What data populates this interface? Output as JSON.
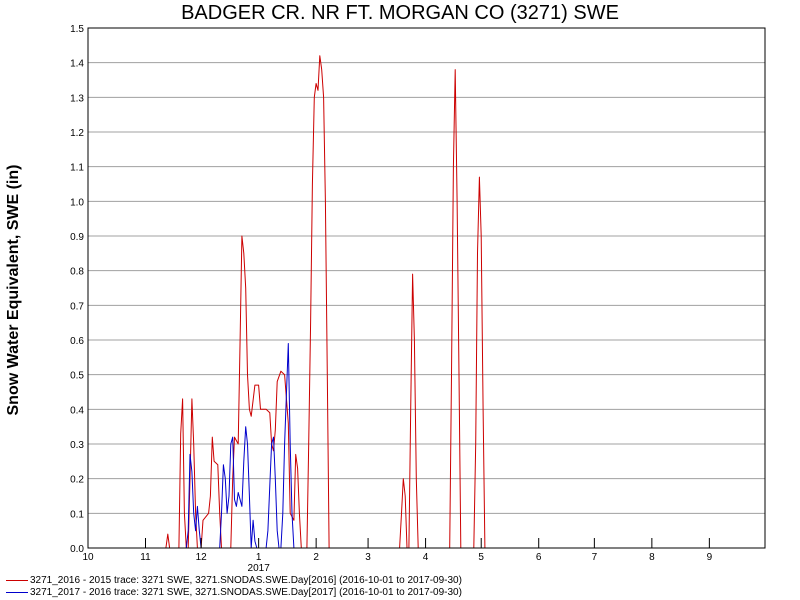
{
  "chart_data": {
    "type": "line",
    "title": "BADGER CR. NR FT. MORGAN CO (3271) SWE",
    "ylabel": "Snow Water Equivalent, SWE (in)",
    "ylim": [
      0,
      1.5
    ],
    "yticks": [
      "0.0",
      "0.1",
      "0.2",
      "0.3",
      "0.4",
      "0.5",
      "0.6",
      "0.7",
      "0.8",
      "0.9",
      "1.0",
      "1.1",
      "1.2",
      "1.3",
      "1.4",
      "1.5"
    ],
    "xlim": [
      "2016-10-01",
      "2017-10-01"
    ],
    "xticks": [
      {
        "label": "10",
        "date": "2016-10-01"
      },
      {
        "label": "11",
        "date": "2016-11-01"
      },
      {
        "label": "12",
        "date": "2016-12-01"
      },
      {
        "label": "1",
        "date": "2017-01-01"
      },
      {
        "label": "2",
        "date": "2017-02-01"
      },
      {
        "label": "3",
        "date": "2017-03-01"
      },
      {
        "label": "4",
        "date": "2017-04-01"
      },
      {
        "label": "5",
        "date": "2017-05-01"
      },
      {
        "label": "6",
        "date": "2017-06-01"
      },
      {
        "label": "7",
        "date": "2017-07-01"
      },
      {
        "label": "8",
        "date": "2017-08-01"
      },
      {
        "label": "9",
        "date": "2017-09-01"
      }
    ],
    "year_label": "2017",
    "grid": true,
    "legend_position": "bottom-left",
    "series": [
      {
        "name": "3271_2016 - 2015 trace: 3271 SWE, 3271.SNODAS.SWE.Day[2016] (2016-10-01 to 2017-09-30)",
        "color": "#cc0000",
        "points": [
          [
            "2016-11-12",
            0
          ],
          [
            "2016-11-13",
            0.04
          ],
          [
            "2016-11-14",
            0
          ],
          [
            "2016-11-19",
            0
          ],
          [
            "2016-11-20",
            0.33
          ],
          [
            "2016-11-21",
            0.43
          ],
          [
            "2016-11-22",
            0.1
          ],
          [
            "2016-11-23",
            0
          ],
          [
            "2016-11-24",
            0
          ],
          [
            "2016-11-25",
            0.2
          ],
          [
            "2016-11-26",
            0.43
          ],
          [
            "2016-11-27",
            0.3
          ],
          [
            "2016-11-28",
            0.1
          ],
          [
            "2016-11-29",
            0
          ],
          [
            "2016-12-01",
            0
          ],
          [
            "2016-12-02",
            0.08
          ],
          [
            "2016-12-05",
            0.1
          ],
          [
            "2016-12-06",
            0.15
          ],
          [
            "2016-12-07",
            0.32
          ],
          [
            "2016-12-08",
            0.25
          ],
          [
            "2016-12-10",
            0.24
          ],
          [
            "2016-12-11",
            0.1
          ],
          [
            "2016-12-12",
            0
          ],
          [
            "2016-12-17",
            0
          ],
          [
            "2016-12-18",
            0.2
          ],
          [
            "2016-12-19",
            0.32
          ],
          [
            "2016-12-21",
            0.3
          ],
          [
            "2016-12-22",
            0.6
          ],
          [
            "2016-12-23",
            0.9
          ],
          [
            "2016-12-24",
            0.85
          ],
          [
            "2016-12-25",
            0.75
          ],
          [
            "2016-12-26",
            0.5
          ],
          [
            "2016-12-27",
            0.4
          ],
          [
            "2016-12-28",
            0.38
          ],
          [
            "2016-12-30",
            0.47
          ],
          [
            "2017-01-01",
            0.47
          ],
          [
            "2017-01-02",
            0.4
          ],
          [
            "2017-01-05",
            0.4
          ],
          [
            "2017-01-07",
            0.39
          ],
          [
            "2017-01-08",
            0.3
          ],
          [
            "2017-01-09",
            0.28
          ],
          [
            "2017-01-10",
            0.34
          ],
          [
            "2017-01-11",
            0.48
          ],
          [
            "2017-01-13",
            0.51
          ],
          [
            "2017-01-15",
            0.5
          ],
          [
            "2017-01-17",
            0.36
          ],
          [
            "2017-01-18",
            0.1
          ],
          [
            "2017-01-20",
            0.08
          ],
          [
            "2017-01-21",
            0.27
          ],
          [
            "2017-01-22",
            0.23
          ],
          [
            "2017-01-23",
            0.1
          ],
          [
            "2017-01-24",
            0
          ],
          [
            "2017-01-27",
            0
          ],
          [
            "2017-01-28",
            0.3
          ],
          [
            "2017-01-29",
            0.65
          ],
          [
            "2017-01-30",
            1.05
          ],
          [
            "2017-01-31",
            1.3
          ],
          [
            "2017-02-01",
            1.34
          ],
          [
            "2017-02-02",
            1.32
          ],
          [
            "2017-02-03",
            1.42
          ],
          [
            "2017-02-04",
            1.38
          ],
          [
            "2017-02-05",
            1.3
          ],
          [
            "2017-02-06",
            1.0
          ],
          [
            "2017-02-07",
            0.5
          ],
          [
            "2017-02-08",
            0
          ],
          [
            "2017-03-18",
            0
          ],
          [
            "2017-03-19",
            0.1
          ],
          [
            "2017-03-20",
            0.2
          ],
          [
            "2017-03-21",
            0.15
          ],
          [
            "2017-03-22",
            0
          ],
          [
            "2017-03-23",
            0
          ],
          [
            "2017-03-24",
            0.4
          ],
          [
            "2017-03-25",
            0.79
          ],
          [
            "2017-03-26",
            0.6
          ],
          [
            "2017-03-27",
            0.2
          ],
          [
            "2017-03-28",
            0
          ],
          [
            "2017-04-14",
            0
          ],
          [
            "2017-04-15",
            0.5
          ],
          [
            "2017-04-16",
            1.1
          ],
          [
            "2017-04-17",
            1.38
          ],
          [
            "2017-04-18",
            1.0
          ],
          [
            "2017-04-19",
            0.5
          ],
          [
            "2017-04-20",
            0
          ],
          [
            "2017-04-27",
            0
          ],
          [
            "2017-04-28",
            0.3
          ],
          [
            "2017-04-29",
            0.85
          ],
          [
            "2017-04-30",
            1.07
          ],
          [
            "2017-05-01",
            0.9
          ],
          [
            "2017-05-02",
            0.4
          ],
          [
            "2017-05-03",
            0
          ]
        ]
      },
      {
        "name": "3271_2017 - 2016 trace: 3271 SWE, 3271.SNODAS.SWE.Day[2017] (2016-10-01 to 2017-09-30)",
        "color": "#0000cc",
        "points": [
          [
            "2016-11-23",
            0
          ],
          [
            "2016-11-24",
            0.05
          ],
          [
            "2016-11-25",
            0.27
          ],
          [
            "2016-11-26",
            0.22
          ],
          [
            "2016-11-27",
            0.1
          ],
          [
            "2016-11-28",
            0.05
          ],
          [
            "2016-11-29",
            0.12
          ],
          [
            "2016-11-30",
            0.05
          ],
          [
            "2016-12-01",
            0
          ],
          [
            "2016-12-11",
            0
          ],
          [
            "2016-12-12",
            0.1
          ],
          [
            "2016-12-13",
            0.24
          ],
          [
            "2016-12-14",
            0.2
          ],
          [
            "2016-12-15",
            0.1
          ],
          [
            "2016-12-16",
            0.15
          ],
          [
            "2016-12-17",
            0.3
          ],
          [
            "2016-12-18",
            0.32
          ],
          [
            "2016-12-19",
            0.14
          ],
          [
            "2016-12-20",
            0.12
          ],
          [
            "2016-12-21",
            0.16
          ],
          [
            "2016-12-23",
            0.12
          ],
          [
            "2016-12-24",
            0.25
          ],
          [
            "2016-12-25",
            0.35
          ],
          [
            "2016-12-26",
            0.3
          ],
          [
            "2016-12-27",
            0.15
          ],
          [
            "2016-12-28",
            0
          ],
          [
            "2016-12-28",
            0
          ],
          [
            "2016-12-29",
            0.08
          ],
          [
            "2016-12-30",
            0.02
          ],
          [
            "2016-12-31",
            0
          ],
          [
            "2017-01-05",
            0
          ],
          [
            "2017-01-06",
            0.05
          ],
          [
            "2017-01-07",
            0.18
          ],
          [
            "2017-01-08",
            0.3
          ],
          [
            "2017-01-09",
            0.32
          ],
          [
            "2017-01-10",
            0.2
          ],
          [
            "2017-01-11",
            0.05
          ],
          [
            "2017-01-12",
            0
          ],
          [
            "2017-01-13",
            0
          ],
          [
            "2017-01-14",
            0.1
          ],
          [
            "2017-01-15",
            0.3
          ],
          [
            "2017-01-16",
            0.45
          ],
          [
            "2017-01-17",
            0.59
          ],
          [
            "2017-01-18",
            0.3
          ],
          [
            "2017-01-19",
            0.1
          ],
          [
            "2017-01-20",
            0
          ]
        ]
      }
    ]
  }
}
